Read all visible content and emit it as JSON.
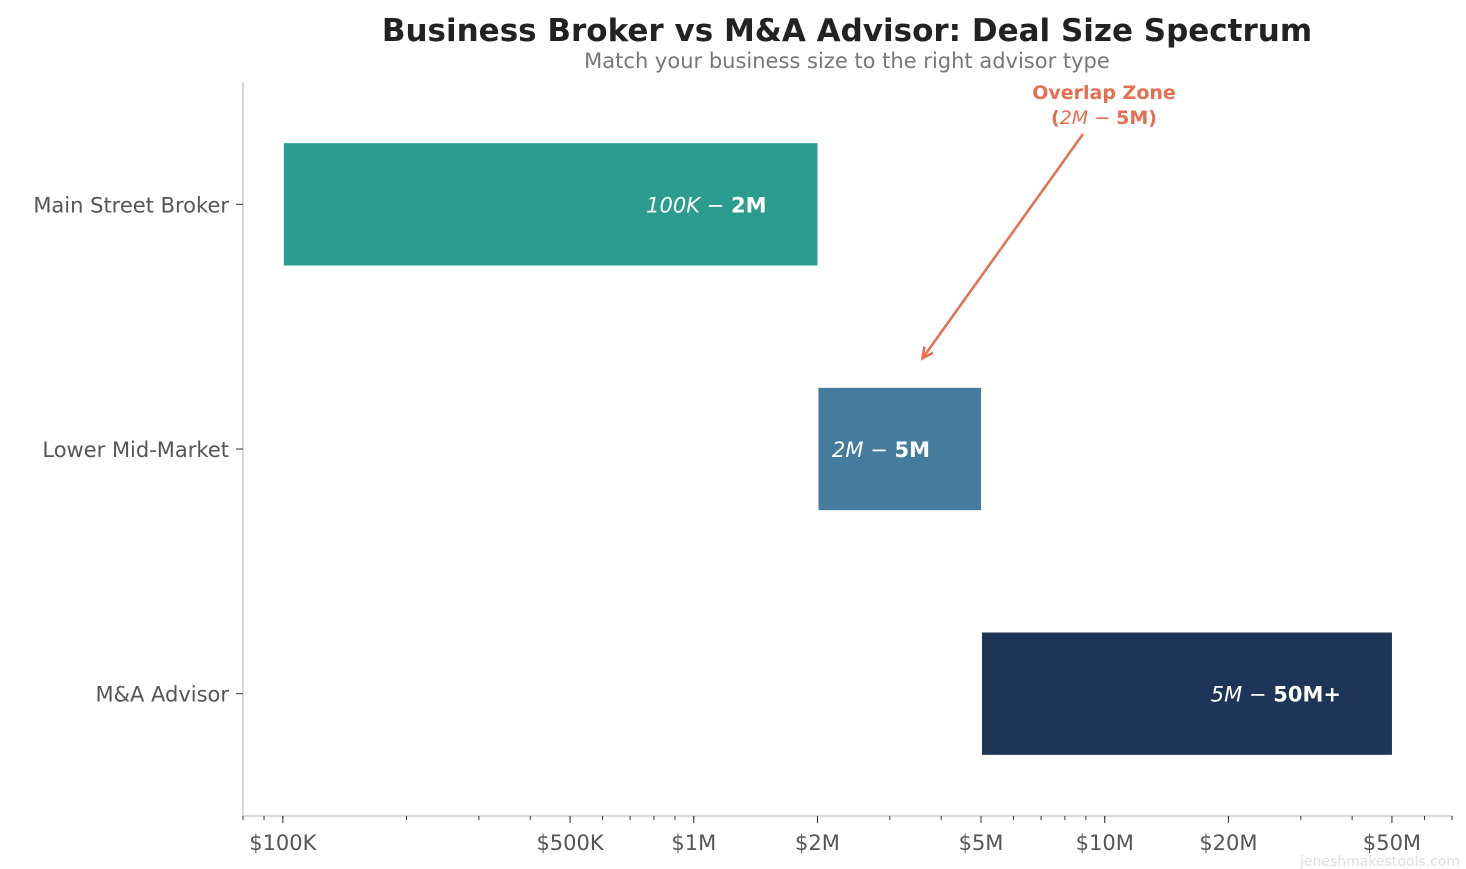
{
  "chart_data": {
    "type": "bar",
    "orientation": "horizontal",
    "title": "Business Broker vs M&A Advisor: Deal Size Spectrum",
    "subtitle": "Match your business size to the right advisor type",
    "xscale": "log",
    "xlim": [
      80000,
      70000000
    ],
    "grid": false,
    "categories": [
      "Main Street Broker",
      "Lower Mid-Market",
      "M&A Advisor"
    ],
    "ranges": [
      {
        "start": 100000,
        "end": 2000000,
        "color": "#2A9D8F",
        "label_italic": "100K − ",
        "label_bold": "2M"
      },
      {
        "start": 2000000,
        "end": 5000000,
        "color": "#457B9D",
        "label_italic": "2M − ",
        "label_bold": "5M"
      },
      {
        "start": 5000000,
        "end": 50000000,
        "color": "#1D3557",
        "label_italic": "5M − ",
        "label_bold": "50M+"
      }
    ],
    "xticks": [
      {
        "value": 100000,
        "label": "$100K"
      },
      {
        "value": 500000,
        "label": "$500K"
      },
      {
        "value": 1000000,
        "label": "$1M"
      },
      {
        "value": 2000000,
        "label": "$2M"
      },
      {
        "value": 5000000,
        "label": "$5M"
      },
      {
        "value": 10000000,
        "label": "$10M"
      },
      {
        "value": 20000000,
        "label": "$20M"
      },
      {
        "value": 50000000,
        "label": "$50M"
      }
    ],
    "annotation": {
      "line1": "Overlap Zone",
      "line2_open": "(",
      "line2_italic": "2M − ",
      "line2_bold": "5M)",
      "color": "#E76F51",
      "arrow_target": {
        "x": 3600000,
        "category_position": 0.63
      }
    }
  },
  "watermark": "jeneshmakestools.com"
}
